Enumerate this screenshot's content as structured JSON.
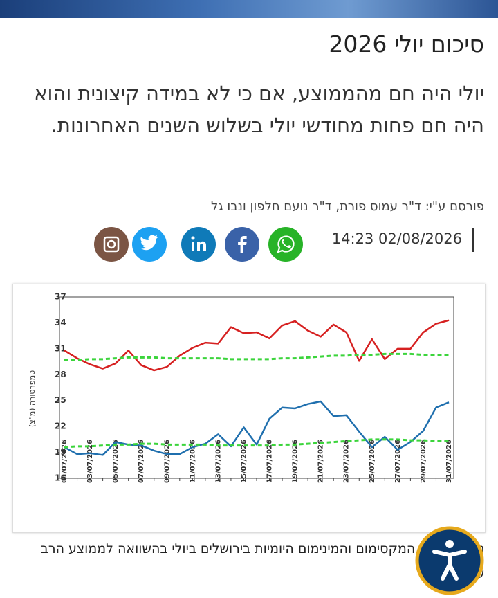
{
  "header": {
    "title": "סיכום יולי 2026",
    "subtitle": "יולי היה חם מהממוצע, אם כי לא במידה קיצונית והוא היה חם פחות מחודשי יולי בשלוש השנים האחרונות."
  },
  "byline": {
    "author": "פורסם ע\"י: ד\"ר עמוס פורת, ד\"ר נועם חלפון ונבו גל",
    "date": "14:23 02/08/2026"
  },
  "figure": {
    "caption": "טמפרטורות המקסימום והמינימום היומיות בירושלים ביולי בהשוואה לממוצע הרב שנתי"
  },
  "chart_data": {
    "type": "line",
    "y_label": "טמפרטורה (מ\"צ)",
    "categories": [
      "01/07/2026",
      null,
      "03/07/2026",
      null,
      "05/07/2026",
      null,
      "07/07/2026",
      null,
      "09/07/2026",
      null,
      "11/07/2026",
      null,
      "13/07/2026",
      null,
      "15/07/2026",
      null,
      "17/07/2026",
      null,
      "19/07/2026",
      null,
      "21/07/2026",
      null,
      "23/07/2026",
      null,
      "25/07/2026",
      null,
      "27/07/2026",
      null,
      "29/07/2026",
      null,
      "31/07/2026"
    ],
    "series": [
      {
        "color": "#d62020",
        "dashed": false,
        "values": [
          30.8,
          29.9,
          29.2,
          28.7,
          29.3,
          30.8,
          29.1,
          28.5,
          28.9,
          30.2,
          31.1,
          31.7,
          31.6,
          33.5,
          32.8,
          32.9,
          32.2,
          33.7,
          34.2,
          33.1,
          32.4,
          33.8,
          32.9,
          29.6,
          32.1,
          29.8,
          31.0,
          31.0,
          32.9,
          33.9,
          34.3
        ]
      },
      {
        "color": "#3bd43b",
        "dashed": true,
        "values": [
          29.7,
          29.7,
          29.8,
          29.8,
          29.9,
          30.0,
          30.0,
          30.0,
          29.9,
          29.9,
          29.9,
          29.9,
          29.9,
          29.8,
          29.8,
          29.8,
          29.8,
          29.9,
          29.9,
          30.0,
          30.1,
          30.2,
          30.2,
          30.3,
          30.3,
          30.4,
          30.4,
          30.4,
          30.3,
          30.3,
          30.3
        ]
      },
      {
        "color": "#1f6fae",
        "dashed": false,
        "values": [
          19.6,
          18.8,
          18.9,
          18.7,
          20.2,
          19.9,
          19.8,
          19.2,
          18.8,
          18.8,
          19.6,
          20.0,
          21.1,
          19.7,
          21.9,
          19.9,
          22.9,
          24.2,
          24.1,
          24.6,
          24.9,
          23.2,
          23.3,
          21.4,
          19.6,
          20.8,
          19.3,
          20.2,
          21.5,
          24.2,
          24.8
        ]
      },
      {
        "color": "#3bd43b",
        "dashed": true,
        "values": [
          19.6,
          19.7,
          19.7,
          19.8,
          19.9,
          19.9,
          20.0,
          20.0,
          19.9,
          19.9,
          19.9,
          19.9,
          19.8,
          19.8,
          19.8,
          19.8,
          19.8,
          19.9,
          19.9,
          20.0,
          20.1,
          20.2,
          20.3,
          20.4,
          20.5,
          20.5,
          20.5,
          20.4,
          20.4,
          20.3,
          20.3
        ]
      }
    ],
    "ylim": [
      16,
      37
    ],
    "yticks": [
      16,
      19,
      22,
      25,
      28,
      31,
      34,
      37
    ],
    "grid": false
  }
}
